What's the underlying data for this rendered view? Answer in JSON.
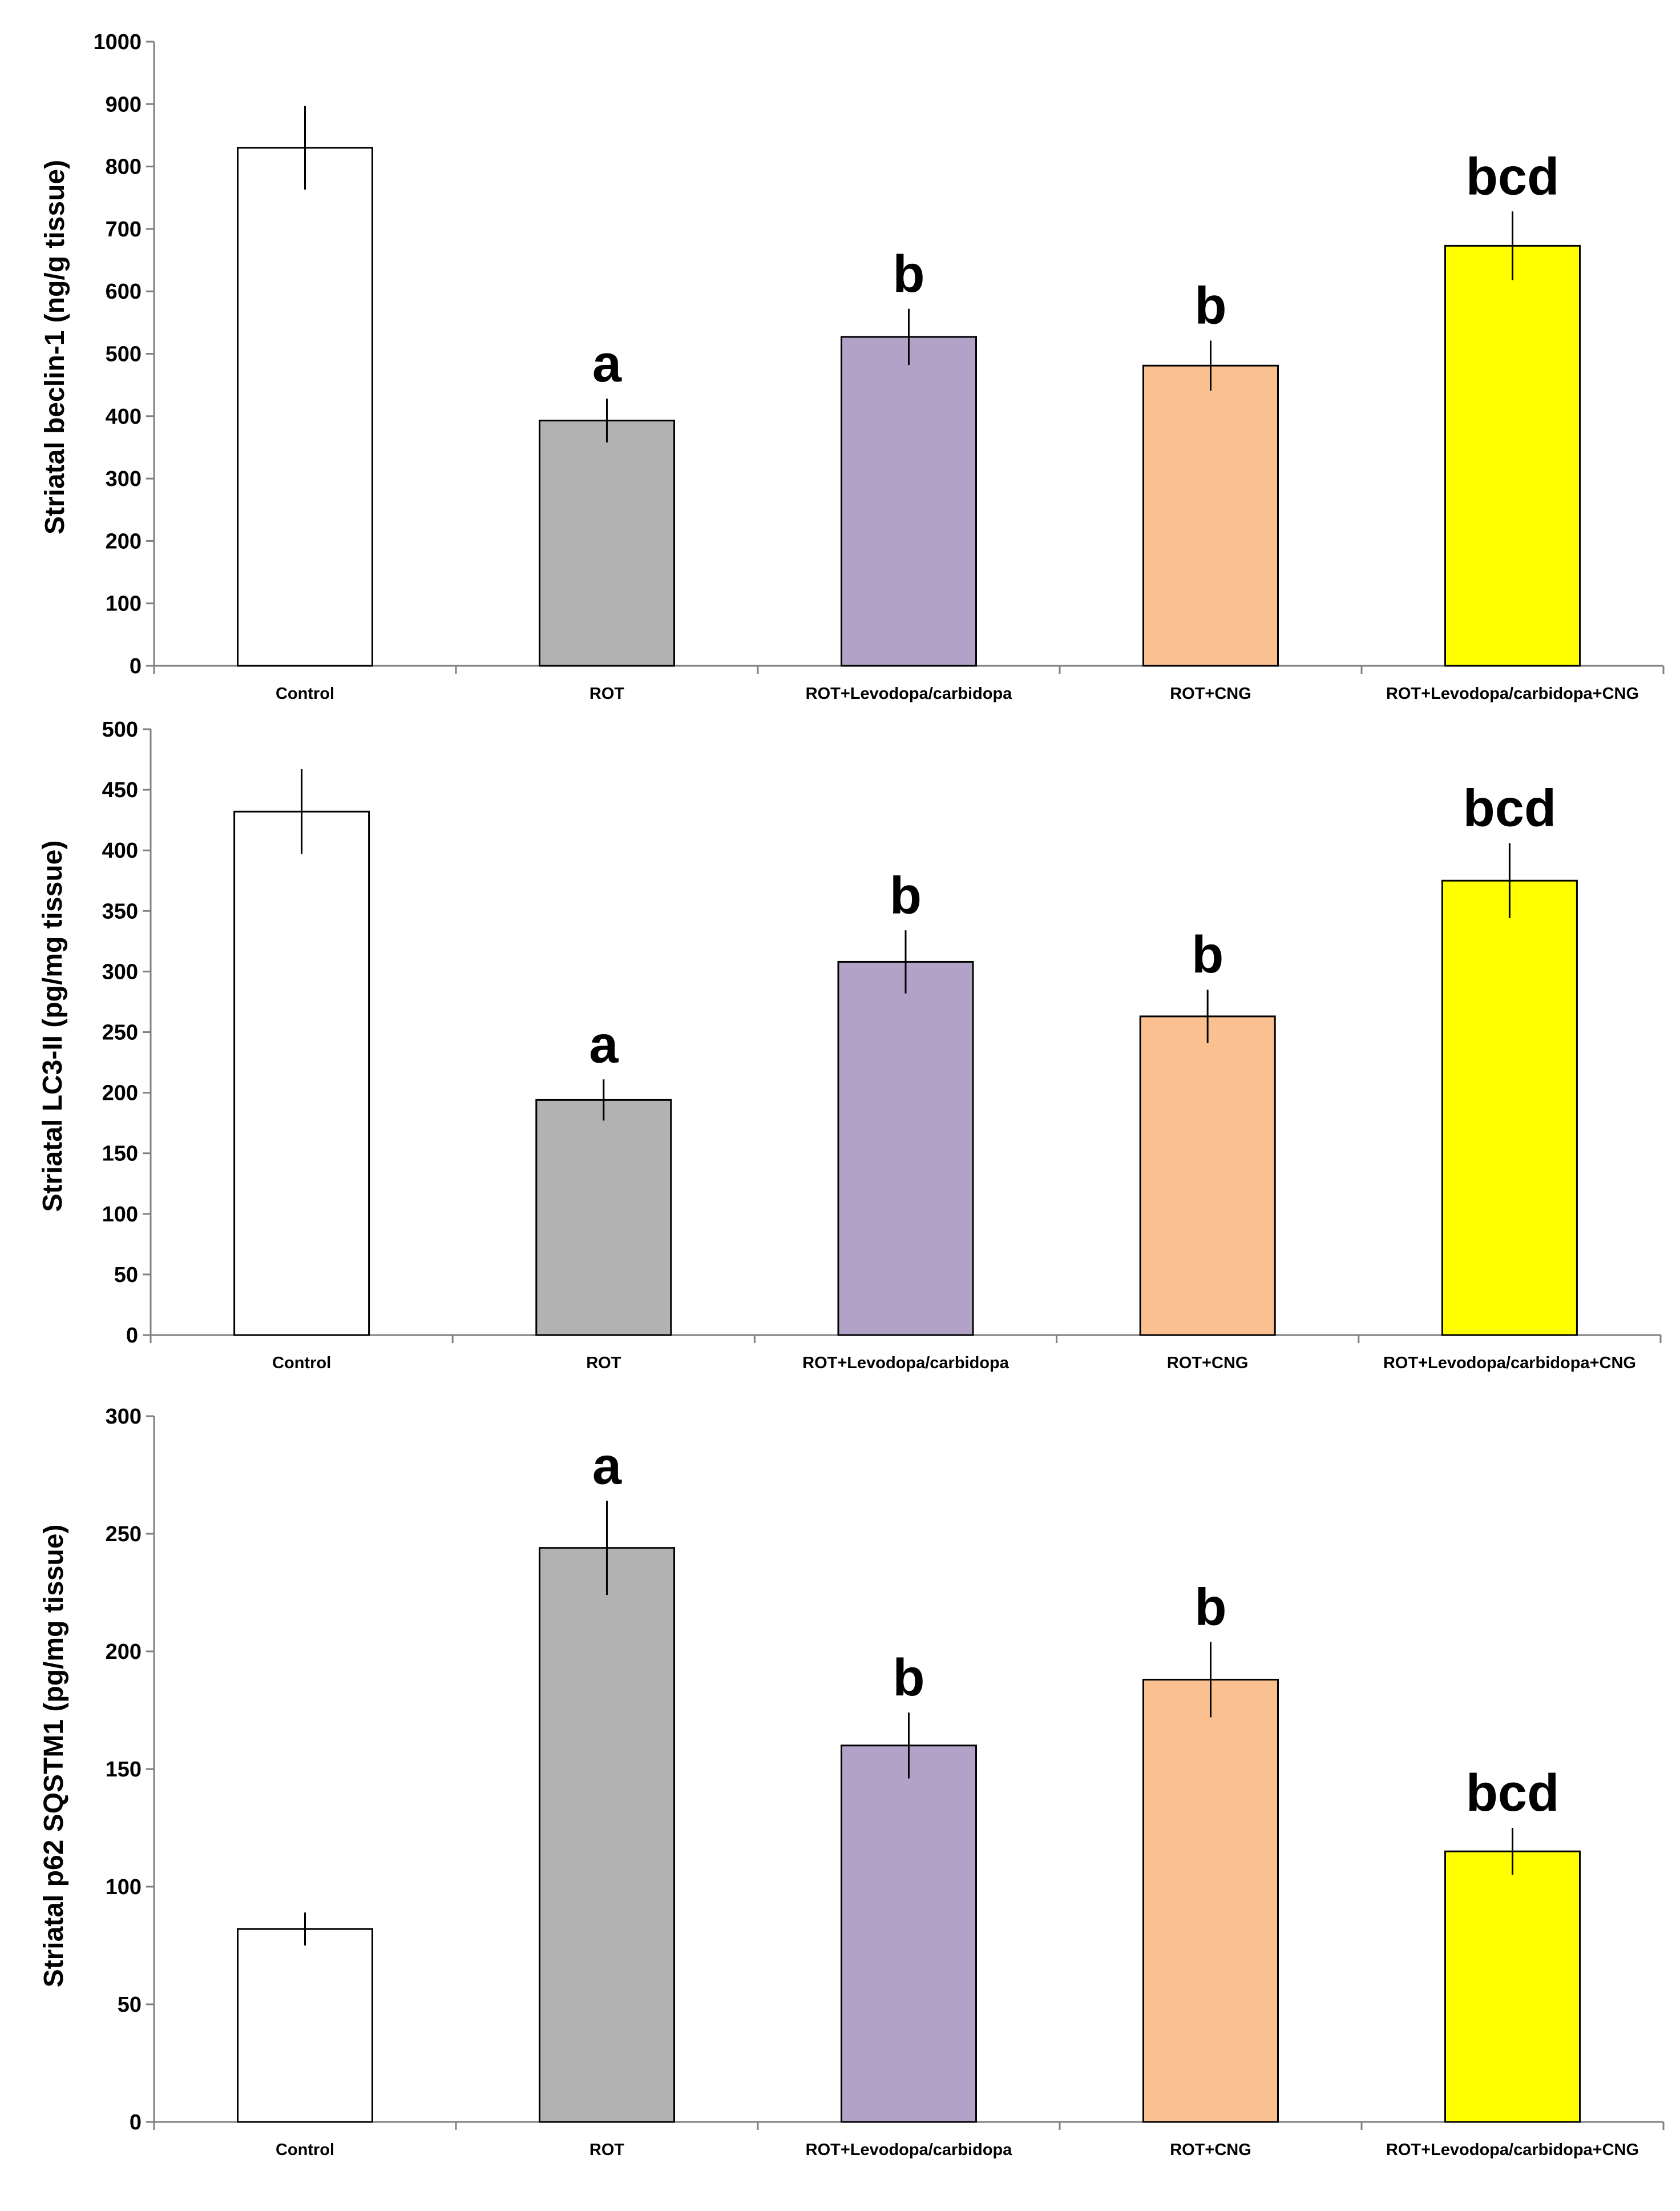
{
  "chart_data": [
    {
      "type": "bar",
      "title": "",
      "xlabel": "",
      "ylabel": "Striatal beclin-1 (ng/g tissue)",
      "ylim": [
        0,
        1000
      ],
      "yticks": [
        0,
        100,
        200,
        300,
        400,
        500,
        600,
        700,
        800,
        900,
        1000
      ],
      "categories": [
        "Control",
        "ROT",
        "ROT+Levodopa/carbidopa",
        "ROT+CNG",
        "ROT+Levodopa/carbidopa+CNG"
      ],
      "values": [
        830,
        393,
        527,
        481,
        673
      ],
      "errors": [
        67,
        35,
        45,
        40,
        55
      ],
      "annotations": [
        "",
        "a",
        "b",
        "b",
        "bcd"
      ],
      "colors": [
        "#ffffff",
        "#b2b2b2",
        "#b3a2c7",
        "#fac090",
        "#ffff00"
      ],
      "grid": false,
      "legend": "none"
    },
    {
      "type": "bar",
      "title": "",
      "xlabel": "",
      "ylabel": "Striatal LC3-II (pg/mg tissue)",
      "ylim": [
        0,
        500
      ],
      "yticks": [
        0,
        50,
        100,
        150,
        200,
        250,
        300,
        350,
        400,
        450,
        500
      ],
      "categories": [
        "Control",
        "ROT",
        "ROT+Levodopa/carbidopa",
        "ROT+CNG",
        "ROT+Levodopa/carbidopa+CNG"
      ],
      "values": [
        432,
        194,
        308,
        263,
        375
      ],
      "errors": [
        35,
        17,
        26,
        22,
        31
      ],
      "annotations": [
        "",
        "a",
        "b",
        "b",
        "bcd"
      ],
      "colors": [
        "#ffffff",
        "#b2b2b2",
        "#b3a2c7",
        "#fac090",
        "#ffff00"
      ],
      "grid": false,
      "legend": "none"
    },
    {
      "type": "bar",
      "title": "",
      "xlabel": "",
      "ylabel": "Striatal p62 SQSTM1 (pg/mg tissue)",
      "ylim": [
        0,
        300
      ],
      "yticks": [
        0,
        50,
        100,
        150,
        200,
        250,
        300
      ],
      "categories": [
        "Control",
        "ROT",
        "ROT+Levodopa/carbidopa",
        "ROT+CNG",
        "ROT+Levodopa/carbidopa+CNG"
      ],
      "values": [
        82,
        244,
        160,
        188,
        115
      ],
      "errors": [
        7,
        20,
        14,
        16,
        10
      ],
      "annotations": [
        "",
        "a",
        "b",
        "b",
        "bcd"
      ],
      "colors": [
        "#ffffff",
        "#b2b2b2",
        "#b3a2c7",
        "#fac090",
        "#ffff00"
      ],
      "grid": false,
      "legend": "none"
    }
  ]
}
